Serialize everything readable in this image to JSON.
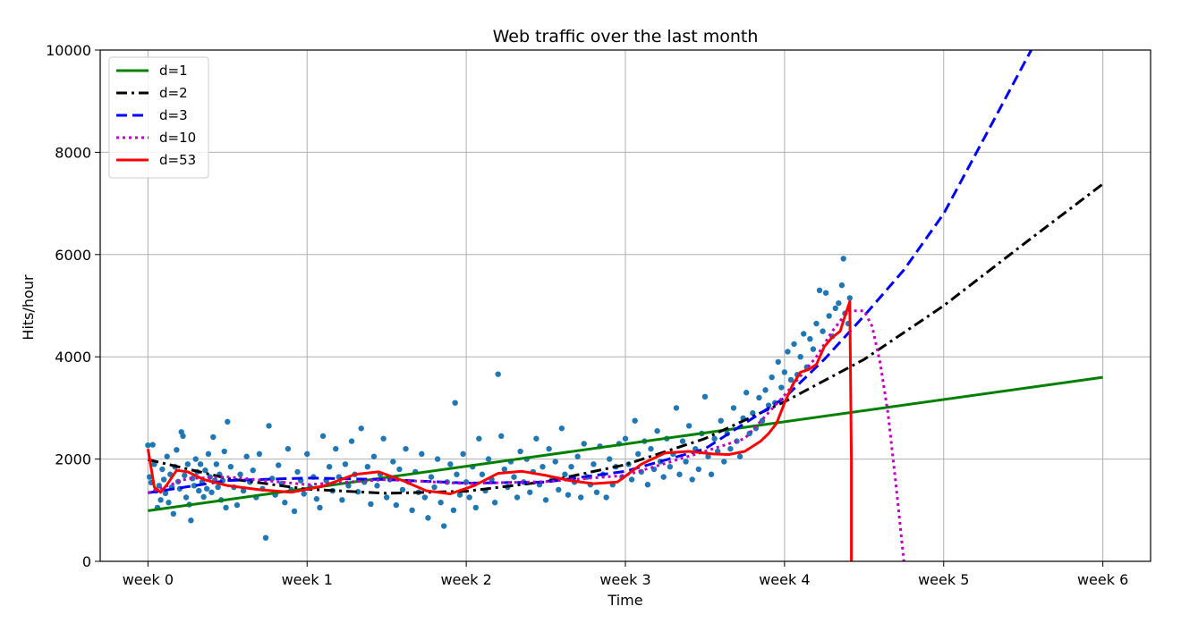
{
  "chart_data": {
    "type": "line",
    "title": "Web traffic over the last month",
    "xlabel": "Time",
    "ylabel": "Hits/hour",
    "xlim": [
      -0.3,
      6.3
    ],
    "ylim": [
      0,
      10000
    ],
    "xticks": [
      0,
      1,
      2,
      3,
      4,
      5,
      6
    ],
    "xtick_labels": [
      "week 0",
      "week 1",
      "week 2",
      "week 3",
      "week 4",
      "week 5",
      "week 6"
    ],
    "yticks": [
      0,
      2000,
      4000,
      6000,
      8000,
      10000
    ],
    "ytick_labels": [
      "0",
      "2000",
      "4000",
      "6000",
      "8000",
      "10000"
    ],
    "grid": true,
    "legend_position": "top-left",
    "scatter": {
      "color": "#1f77b4",
      "points": [
        [
          0.0,
          2270
        ],
        [
          0.01,
          1650
        ],
        [
          0.02,
          1540
        ],
        [
          0.03,
          2280
        ],
        [
          0.04,
          1900
        ],
        [
          0.05,
          1380
        ],
        [
          0.06,
          1050
        ],
        [
          0.07,
          1480
        ],
        [
          0.08,
          1200
        ],
        [
          0.09,
          1800
        ],
        [
          0.1,
          1600
        ],
        [
          0.11,
          1330
        ],
        [
          0.12,
          2050
        ],
        [
          0.13,
          1150
        ],
        [
          0.14,
          1700
        ],
        [
          0.15,
          1450
        ],
        [
          0.16,
          930
        ],
        [
          0.17,
          1850
        ],
        [
          0.18,
          2180
        ],
        [
          0.19,
          1560
        ],
        [
          0.2,
          1420
        ],
        [
          0.21,
          2530
        ],
        [
          0.22,
          2450
        ],
        [
          0.23,
          1680
        ],
        [
          0.24,
          1250
        ],
        [
          0.25,
          1900
        ],
        [
          0.26,
          1110
        ],
        [
          0.27,
          800
        ],
        [
          0.28,
          1620
        ],
        [
          0.29,
          1480
        ],
        [
          0.3,
          2000
        ],
        [
          0.31,
          1750
        ],
        [
          0.32,
          1380
        ],
        [
          0.33,
          1900
        ],
        [
          0.34,
          1550
        ],
        [
          0.35,
          1260
        ],
        [
          0.36,
          1780
        ],
        [
          0.37,
          1420
        ],
        [
          0.38,
          2100
        ],
        [
          0.39,
          1650
        ],
        [
          0.4,
          1350
        ],
        [
          0.41,
          2430
        ],
        [
          0.42,
          1580
        ],
        [
          0.43,
          1900
        ],
        [
          0.44,
          1450
        ],
        [
          0.45,
          1700
        ],
        [
          0.46,
          1200
        ],
        [
          0.47,
          1580
        ],
        [
          0.48,
          2150
        ],
        [
          0.49,
          1050
        ],
        [
          0.5,
          2730
        ],
        [
          0.52,
          1850
        ],
        [
          0.54,
          1450
        ],
        [
          0.56,
          1100
        ],
        [
          0.58,
          1700
        ],
        [
          0.6,
          1380
        ],
        [
          0.62,
          2050
        ],
        [
          0.64,
          1550
        ],
        [
          0.66,
          1780
        ],
        [
          0.68,
          1250
        ],
        [
          0.7,
          2100
        ],
        [
          0.72,
          1420
        ],
        [
          0.74,
          460
        ],
        [
          0.76,
          2650
        ],
        [
          0.78,
          1620
        ],
        [
          0.8,
          1300
        ],
        [
          0.82,
          1880
        ],
        [
          0.84,
          1520
        ],
        [
          0.86,
          1150
        ],
        [
          0.88,
          2200
        ],
        [
          0.9,
          1400
        ],
        [
          0.92,
          980
        ],
        [
          0.94,
          1750
        ],
        [
          0.96,
          1580
        ],
        [
          0.98,
          1320
        ],
        [
          1.0,
          2100
        ],
        [
          1.02,
          1450
        ],
        [
          1.04,
          1650
        ],
        [
          1.06,
          1220
        ],
        [
          1.08,
          1050
        ],
        [
          1.1,
          2450
        ],
        [
          1.12,
          1580
        ],
        [
          1.14,
          1850
        ],
        [
          1.16,
          1380
        ],
        [
          1.18,
          2200
        ],
        [
          1.2,
          1650
        ],
        [
          1.22,
          1200
        ],
        [
          1.24,
          1900
        ],
        [
          1.26,
          1480
        ],
        [
          1.28,
          2350
        ],
        [
          1.3,
          1700
        ],
        [
          1.32,
          1360
        ],
        [
          1.34,
          2600
        ],
        [
          1.36,
          1550
        ],
        [
          1.38,
          1850
        ],
        [
          1.4,
          1120
        ],
        [
          1.42,
          2050
        ],
        [
          1.44,
          1480
        ],
        [
          1.46,
          1700
        ],
        [
          1.48,
          2400
        ],
        [
          1.5,
          1250
        ],
        [
          1.52,
          1600
        ],
        [
          1.54,
          1950
        ],
        [
          1.56,
          1100
        ],
        [
          1.58,
          1800
        ],
        [
          1.6,
          1400
        ],
        [
          1.62,
          2200
        ],
        [
          1.64,
          1550
        ],
        [
          1.66,
          1000
        ],
        [
          1.68,
          1750
        ],
        [
          1.7,
          1350
        ],
        [
          1.72,
          2100
        ],
        [
          1.74,
          1250
        ],
        [
          1.76,
          850
        ],
        [
          1.78,
          1650
        ],
        [
          1.8,
          1450
        ],
        [
          1.82,
          2000
        ],
        [
          1.84,
          1150
        ],
        [
          1.86,
          690
        ],
        [
          1.88,
          1550
        ],
        [
          1.9,
          1900
        ],
        [
          1.92,
          1000
        ],
        [
          1.93,
          3100
        ],
        [
          1.94,
          1700
        ],
        [
          1.96,
          1300
        ],
        [
          1.98,
          2100
        ],
        [
          2.0,
          1550
        ],
        [
          2.02,
          1250
        ],
        [
          2.04,
          1850
        ],
        [
          2.06,
          1050
        ],
        [
          2.08,
          2400
        ],
        [
          2.1,
          1700
        ],
        [
          2.12,
          1380
        ],
        [
          2.14,
          2000
        ],
        [
          2.16,
          1600
        ],
        [
          2.18,
          1150
        ],
        [
          2.2,
          3660
        ],
        [
          2.22,
          2450
        ],
        [
          2.24,
          1800
        ],
        [
          2.26,
          1450
        ],
        [
          2.28,
          1950
        ],
        [
          2.3,
          1650
        ],
        [
          2.32,
          1250
        ],
        [
          2.34,
          2150
        ],
        [
          2.36,
          1550
        ],
        [
          2.38,
          2000
        ],
        [
          2.4,
          1350
        ],
        [
          2.42,
          1750
        ],
        [
          2.44,
          2400
        ],
        [
          2.46,
          1500
        ],
        [
          2.48,
          1850
        ],
        [
          2.5,
          1200
        ],
        [
          2.52,
          2200
        ],
        [
          2.54,
          1600
        ],
        [
          2.56,
          1950
        ],
        [
          2.58,
          1400
        ],
        [
          2.6,
          2600
        ],
        [
          2.62,
          1700
        ],
        [
          2.64,
          1300
        ],
        [
          2.66,
          1850
        ],
        [
          2.68,
          1550
        ],
        [
          2.7,
          2050
        ],
        [
          2.72,
          1250
        ],
        [
          2.74,
          2300
        ],
        [
          2.76,
          1650
        ],
        [
          2.78,
          1500
        ],
        [
          2.8,
          1900
        ],
        [
          2.82,
          1350
        ],
        [
          2.84,
          2250
        ],
        [
          2.86,
          1700
        ],
        [
          2.88,
          1250
        ],
        [
          2.9,
          2000
        ],
        [
          2.92,
          1500
        ],
        [
          2.94,
          1850
        ],
        [
          2.96,
          2300
        ],
        [
          2.98,
          1650
        ],
        [
          3.0,
          2400
        ],
        [
          3.02,
          1900
        ],
        [
          3.04,
          1600
        ],
        [
          3.06,
          2750
        ],
        [
          3.08,
          2100
        ],
        [
          3.1,
          1750
        ],
        [
          3.12,
          2350
        ],
        [
          3.14,
          1500
        ],
        [
          3.16,
          2200
        ],
        [
          3.18,
          1800
        ],
        [
          3.2,
          2550
        ],
        [
          3.22,
          1950
        ],
        [
          3.24,
          1650
        ],
        [
          3.26,
          2400
        ],
        [
          3.28,
          1850
        ],
        [
          3.3,
          2100
        ],
        [
          3.32,
          3000
        ],
        [
          3.34,
          1700
        ],
        [
          3.36,
          2350
        ],
        [
          3.38,
          1950
        ],
        [
          3.4,
          2650
        ],
        [
          3.42,
          1600
        ],
        [
          3.44,
          2200
        ],
        [
          3.46,
          1800
        ],
        [
          3.48,
          2500
        ],
        [
          3.5,
          3220
        ],
        [
          3.52,
          2050
        ],
        [
          3.54,
          1700
        ],
        [
          3.56,
          2400
        ],
        [
          3.58,
          2150
        ],
        [
          3.6,
          2750
        ],
        [
          3.62,
          1950
        ],
        [
          3.64,
          2500
        ],
        [
          3.66,
          2200
        ],
        [
          3.68,
          3000
        ],
        [
          3.7,
          2350
        ],
        [
          3.72,
          2050
        ],
        [
          3.74,
          2800
        ],
        [
          3.76,
          3300
        ],
        [
          3.78,
          2500
        ],
        [
          3.8,
          2900
        ],
        [
          3.82,
          2600
        ],
        [
          3.84,
          3200
        ],
        [
          3.86,
          2750
        ],
        [
          3.88,
          3350
        ],
        [
          3.9,
          3050
        ],
        [
          3.92,
          3600
        ],
        [
          3.94,
          3100
        ],
        [
          3.96,
          3900
        ],
        [
          3.98,
          3400
        ],
        [
          4.0,
          3700
        ],
        [
          4.02,
          4100
        ],
        [
          4.04,
          3550
        ],
        [
          4.06,
          4250
        ],
        [
          4.08,
          3650
        ],
        [
          4.1,
          4000
        ],
        [
          4.12,
          4450
        ],
        [
          4.14,
          3800
        ],
        [
          4.16,
          4350
        ],
        [
          4.18,
          4150
        ],
        [
          4.2,
          4650
        ],
        [
          4.22,
          5300
        ],
        [
          4.24,
          4500
        ],
        [
          4.26,
          5250
        ],
        [
          4.28,
          4800
        ],
        [
          4.3,
          4400
        ],
        [
          4.32,
          4950
        ],
        [
          4.34,
          5050
        ],
        [
          4.36,
          5400
        ],
        [
          4.37,
          5920
        ],
        [
          4.38,
          4850
        ],
        [
          4.4,
          4650
        ],
        [
          4.41,
          5150
        ]
      ]
    },
    "series": [
      {
        "name": "d=1",
        "color": "#008000",
        "dash": "solid",
        "x": [
          0,
          6
        ],
        "y": [
          990,
          3600
        ]
      },
      {
        "name": "d=2",
        "color": "#000000",
        "dash": "dashdot",
        "x": [
          0,
          0.5,
          1,
          1.5,
          2,
          2.5,
          3,
          3.5,
          4,
          4.5,
          5,
          5.5,
          6
        ],
        "y": [
          1990,
          1620,
          1410,
          1330,
          1370,
          1560,
          1890,
          2400,
          3120,
          3950,
          5000,
          6200,
          7380
        ]
      },
      {
        "name": "d=3",
        "color": "#0000ff",
        "dash": "dashed",
        "x": [
          0,
          0.5,
          1,
          1.5,
          2,
          2.5,
          3,
          3.5,
          4,
          4.25,
          4.5,
          4.75,
          5,
          5.25,
          5.55
        ],
        "y": [
          1340,
          1580,
          1630,
          1600,
          1530,
          1550,
          1760,
          2200,
          3200,
          3950,
          4800,
          5700,
          6800,
          8250,
          10000
        ]
      },
      {
        "name": "d=10",
        "color": "#bf00bf",
        "dash": "dotted",
        "x": [
          0,
          0.25,
          0.5,
          1,
          1.5,
          2,
          2.5,
          3,
          3.5,
          3.75,
          4,
          4.2,
          4.3,
          4.4,
          4.5,
          4.55,
          4.6,
          4.65,
          4.7,
          4.75
        ],
        "y": [
          1340,
          1620,
          1650,
          1500,
          1600,
          1520,
          1560,
          1680,
          2150,
          2400,
          3250,
          4000,
          4500,
          4900,
          4900,
          4600,
          3900,
          2900,
          1500,
          0
        ]
      },
      {
        "name": "d=53",
        "color": "#ff0000",
        "dash": "solid",
        "x": [
          0,
          0.04,
          0.08,
          0.12,
          0.18,
          0.25,
          0.35,
          0.5,
          0.7,
          0.9,
          1.1,
          1.3,
          1.45,
          1.6,
          1.75,
          1.9,
          2.05,
          2.2,
          2.35,
          2.5,
          2.65,
          2.8,
          2.95,
          3.1,
          3.25,
          3.4,
          3.55,
          3.65,
          3.75,
          3.85,
          3.9,
          3.95,
          4.0,
          4.05,
          4.1,
          4.15,
          4.2,
          4.25,
          4.3,
          4.35,
          4.38,
          4.41,
          4.42,
          4.42
        ],
        "y": [
          2200,
          1450,
          1350,
          1500,
          1780,
          1750,
          1600,
          1480,
          1400,
          1350,
          1470,
          1700,
          1750,
          1580,
          1380,
          1320,
          1480,
          1720,
          1760,
          1680,
          1580,
          1520,
          1550,
          1900,
          2120,
          2150,
          2100,
          2090,
          2150,
          2350,
          2500,
          2700,
          3100,
          3450,
          3700,
          3750,
          3850,
          4200,
          4380,
          4500,
          4800,
          5080,
          2000,
          0
        ]
      }
    ]
  }
}
